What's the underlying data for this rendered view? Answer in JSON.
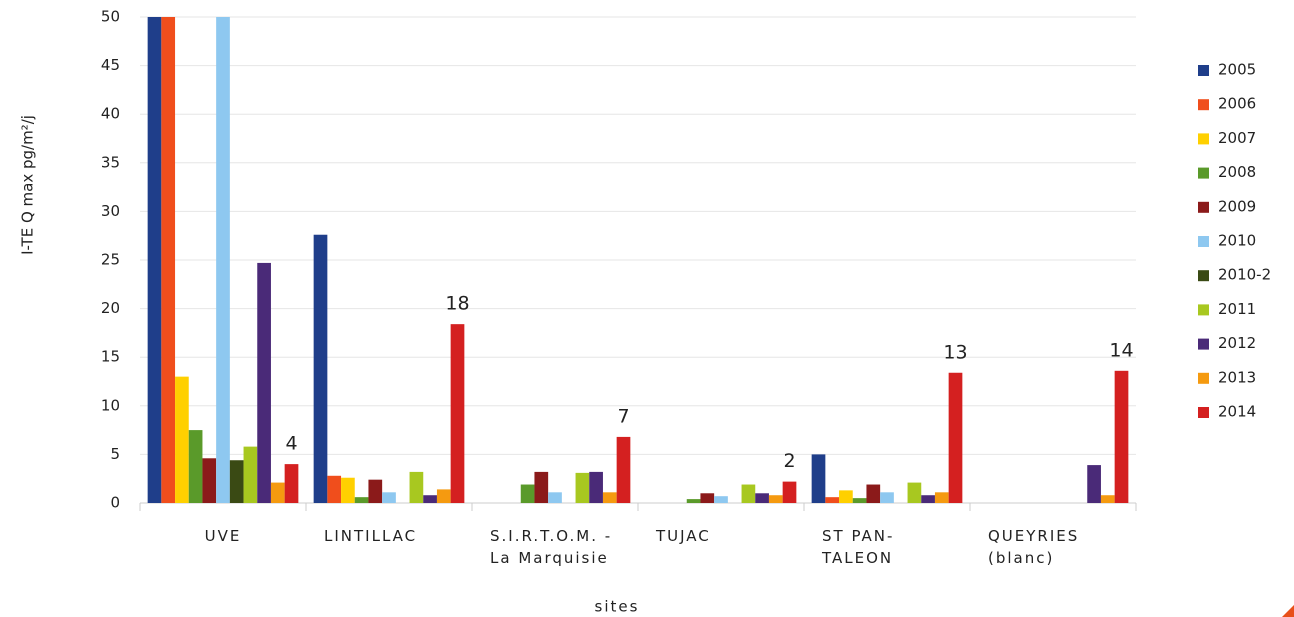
{
  "chart_data": {
    "type": "bar",
    "y_label": "I-TE Q max pg/m²/j",
    "x_label": "sites",
    "categories": [
      "UVE",
      "LINTILLAC",
      "S.I.R.T.O.M. - La Marquisie",
      "TUJAC",
      "ST PAN-TALEON",
      "QUEYRIES (blanc)"
    ],
    "series": [
      {
        "name": "2005",
        "color": "#1f3e8a",
        "values": [
          50,
          27.6,
          null,
          null,
          5.0,
          null
        ]
      },
      {
        "name": "2006",
        "color": "#f04e1c",
        "values": [
          50,
          2.8,
          null,
          null,
          0.6,
          null
        ]
      },
      {
        "name": "2007",
        "color": "#ffd000",
        "values": [
          13,
          2.6,
          null,
          null,
          1.3,
          null
        ]
      },
      {
        "name": "2008",
        "color": "#5a9a2a",
        "values": [
          7.5,
          0.6,
          1.9,
          0.4,
          0.5,
          null
        ]
      },
      {
        "name": "2009",
        "color": "#8b1a1a",
        "values": [
          4.6,
          2.4,
          3.2,
          1.0,
          1.9,
          null
        ]
      },
      {
        "name": "2010",
        "color": "#8ec8f0",
        "values": [
          50,
          1.1,
          1.1,
          0.7,
          1.1,
          null
        ]
      },
      {
        "name": "2010-2",
        "color": "#3a4a14",
        "values": [
          4.4,
          null,
          null,
          null,
          null,
          null
        ]
      },
      {
        "name": "2011",
        "color": "#a8c820",
        "values": [
          5.8,
          3.2,
          3.1,
          1.9,
          2.1,
          null
        ]
      },
      {
        "name": "2012",
        "color": "#4a2a78",
        "values": [
          24.7,
          0.8,
          3.2,
          1.0,
          0.8,
          3.9
        ]
      },
      {
        "name": "2013",
        "color": "#f59a10",
        "values": [
          2.1,
          1.4,
          1.1,
          0.8,
          1.1,
          0.8
        ]
      },
      {
        "name": "2014",
        "color": "#d42020",
        "values": [
          4.0,
          18.4,
          6.8,
          2.2,
          13.4,
          13.6
        ],
        "value_labels": [
          "4",
          "18",
          "7",
          "2",
          "13",
          "14"
        ]
      }
    ],
    "ylim": [
      0,
      50
    ],
    "yticks": [
      0,
      5,
      10,
      15,
      20,
      25,
      30,
      35,
      40,
      45,
      50
    ],
    "grid": true,
    "legend": "right"
  }
}
